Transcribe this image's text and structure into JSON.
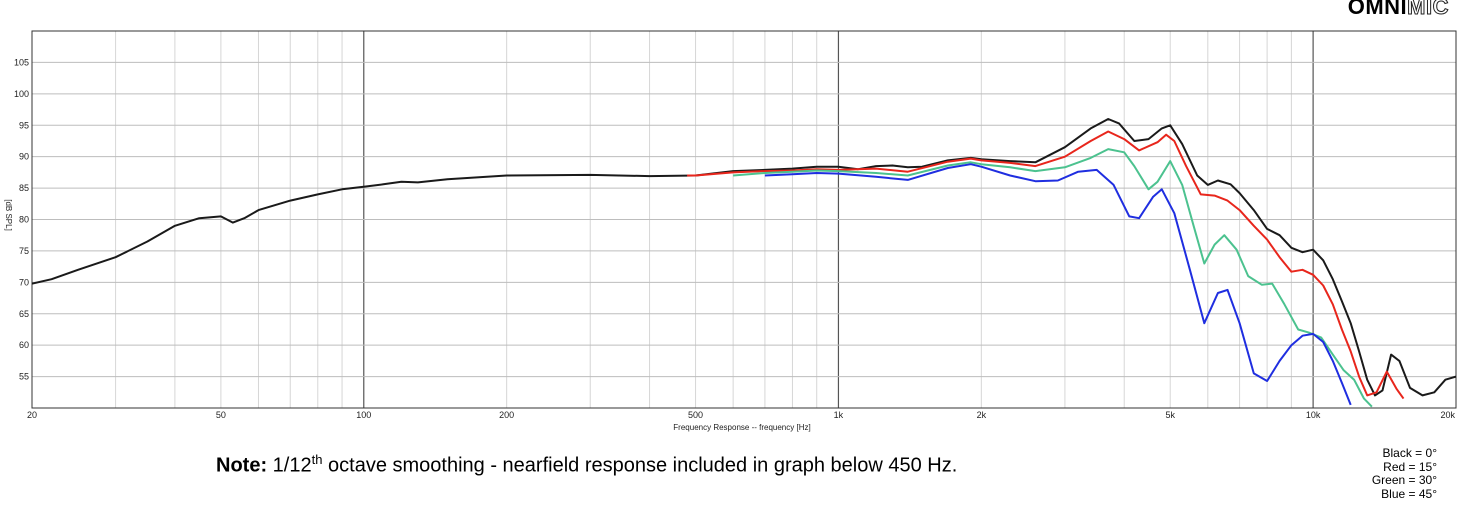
{
  "logo": {
    "part1": "OMNI",
    "part2": "MIC"
  },
  "note": {
    "label": "Note:",
    "pre": "1/12",
    "sup": "th",
    "post": " octave smoothing - nearfield response included in graph below 450 Hz."
  },
  "legend": [
    "Black = 0°",
    "Red = 15°",
    "Green = 30°",
    "Blue = 45°"
  ],
  "colors": {
    "black": "#1a1a1a",
    "red": "#e8261c",
    "green": "#4cc28f",
    "blue": "#1f2ee0"
  },
  "chart_data": {
    "type": "line",
    "xscale": "log",
    "xlim": [
      20,
      20000
    ],
    "ylim": [
      50,
      110
    ],
    "xlabel": "Frequency Response -- frequency [Hz]",
    "ylabel": "[dB SPL]",
    "xticks": [
      {
        "v": 20,
        "label": "20"
      },
      {
        "v": 50,
        "label": "50"
      },
      {
        "v": 100,
        "label": "100"
      },
      {
        "v": 200,
        "label": "200"
      },
      {
        "v": 500,
        "label": "500"
      },
      {
        "v": 1000,
        "label": "1k"
      },
      {
        "v": 2000,
        "label": "2k"
      },
      {
        "v": 5000,
        "label": "5k"
      },
      {
        "v": 10000,
        "label": "10k"
      },
      {
        "v": 20000,
        "label": "20k"
      }
    ],
    "yticks": [
      55,
      60,
      65,
      70,
      75,
      80,
      85,
      90,
      95,
      100,
      105
    ],
    "grid": true,
    "series": [
      {
        "name": "Black = 0°",
        "color": "#1a1a1a",
        "points": [
          [
            20,
            69.8
          ],
          [
            22,
            70.5
          ],
          [
            25,
            72
          ],
          [
            30,
            74
          ],
          [
            35,
            76.5
          ],
          [
            40,
            79
          ],
          [
            45,
            80.2
          ],
          [
            50,
            80.5
          ],
          [
            53,
            79.5
          ],
          [
            56,
            80.2
          ],
          [
            60,
            81.5
          ],
          [
            70,
            83
          ],
          [
            80,
            84
          ],
          [
            90,
            84.8
          ],
          [
            100,
            85.2
          ],
          [
            110,
            85.6
          ],
          [
            120,
            86
          ],
          [
            130,
            85.9
          ],
          [
            150,
            86.4
          ],
          [
            200,
            87
          ],
          [
            300,
            87.1
          ],
          [
            400,
            86.9
          ],
          [
            500,
            87
          ],
          [
            600,
            87.7
          ],
          [
            700,
            87.9
          ],
          [
            800,
            88.1
          ],
          [
            900,
            88.4
          ],
          [
            1000,
            88.4
          ],
          [
            1100,
            88.0
          ],
          [
            1200,
            88.5
          ],
          [
            1300,
            88.6
          ],
          [
            1400,
            88.3
          ],
          [
            1500,
            88.4
          ],
          [
            1700,
            89.4
          ],
          [
            1900,
            89.8
          ],
          [
            2000,
            89.6
          ],
          [
            2300,
            89.3
          ],
          [
            2600,
            89.1
          ],
          [
            3000,
            91.5
          ],
          [
            3400,
            94.5
          ],
          [
            3700,
            96
          ],
          [
            3900,
            95.3
          ],
          [
            4200,
            92.5
          ],
          [
            4500,
            92.8
          ],
          [
            4800,
            94.5
          ],
          [
            5000,
            95
          ],
          [
            5300,
            92
          ],
          [
            5700,
            87
          ],
          [
            6000,
            85.5
          ],
          [
            6300,
            86.2
          ],
          [
            6700,
            85.6
          ],
          [
            7000,
            84.2
          ],
          [
            7500,
            81.5
          ],
          [
            8000,
            78.5
          ],
          [
            8500,
            77.5
          ],
          [
            9000,
            75.5
          ],
          [
            9500,
            74.8
          ],
          [
            10000,
            75.2
          ],
          [
            10500,
            73.5
          ],
          [
            11000,
            70.5
          ],
          [
            11500,
            67
          ],
          [
            12000,
            63.5
          ],
          [
            12500,
            59
          ],
          [
            13000,
            54.5
          ],
          [
            13500,
            52
          ],
          [
            14000,
            52.8
          ],
          [
            14600,
            58.5
          ],
          [
            15200,
            57.5
          ],
          [
            16000,
            53.2
          ],
          [
            17000,
            52
          ],
          [
            18000,
            52.5
          ],
          [
            19000,
            54.5
          ],
          [
            20000,
            55
          ]
        ]
      },
      {
        "name": "Red = 15°",
        "color": "#e8261c",
        "points": [
          [
            480,
            87
          ],
          [
            500,
            87
          ],
          [
            600,
            87.5
          ],
          [
            700,
            87.7
          ],
          [
            800,
            87.8
          ],
          [
            900,
            88
          ],
          [
            1000,
            87.9
          ],
          [
            1200,
            88.1
          ],
          [
            1400,
            87.6
          ],
          [
            1700,
            89.2
          ],
          [
            1900,
            89.7
          ],
          [
            2000,
            89.4
          ],
          [
            2300,
            89
          ],
          [
            2600,
            88.5
          ],
          [
            3000,
            90
          ],
          [
            3400,
            92.5
          ],
          [
            3700,
            94
          ],
          [
            4000,
            92.8
          ],
          [
            4300,
            91
          ],
          [
            4700,
            92.3
          ],
          [
            4900,
            93.5
          ],
          [
            5100,
            92.5
          ],
          [
            5400,
            88.5
          ],
          [
            5800,
            84
          ],
          [
            6200,
            83.8
          ],
          [
            6600,
            83
          ],
          [
            7000,
            81.5
          ],
          [
            7500,
            79
          ],
          [
            8000,
            76.8
          ],
          [
            8500,
            74
          ],
          [
            9000,
            71.7
          ],
          [
            9500,
            72
          ],
          [
            10000,
            71.2
          ],
          [
            10500,
            69.5
          ],
          [
            11000,
            66.5
          ],
          [
            11500,
            62.5
          ],
          [
            12000,
            59
          ],
          [
            12500,
            55
          ],
          [
            13000,
            52
          ],
          [
            13600,
            52.5
          ],
          [
            14300,
            55.8
          ],
          [
            15000,
            53
          ],
          [
            15500,
            51.5
          ]
        ]
      },
      {
        "name": "Green = 30°",
        "color": "#4cc28f",
        "points": [
          [
            600,
            87
          ],
          [
            700,
            87.4
          ],
          [
            800,
            87.6
          ],
          [
            900,
            87.8
          ],
          [
            1000,
            87.7
          ],
          [
            1200,
            87.4
          ],
          [
            1400,
            87
          ],
          [
            1700,
            88.6
          ],
          [
            1900,
            89.1
          ],
          [
            2000,
            88.8
          ],
          [
            2300,
            88.3
          ],
          [
            2600,
            87.7
          ],
          [
            3000,
            88.3
          ],
          [
            3400,
            89.8
          ],
          [
            3700,
            91.2
          ],
          [
            4000,
            90.7
          ],
          [
            4200,
            88.5
          ],
          [
            4500,
            84.8
          ],
          [
            4700,
            86
          ],
          [
            5000,
            89.3
          ],
          [
            5300,
            85.5
          ],
          [
            5600,
            79
          ],
          [
            5900,
            73
          ],
          [
            6200,
            76
          ],
          [
            6500,
            77.5
          ],
          [
            6900,
            75.2
          ],
          [
            7300,
            71
          ],
          [
            7800,
            69.6
          ],
          [
            8200,
            69.8
          ],
          [
            8700,
            66.5
          ],
          [
            9300,
            62.5
          ],
          [
            9800,
            62
          ],
          [
            10400,
            61.2
          ],
          [
            11000,
            58.5
          ],
          [
            11600,
            56
          ],
          [
            12200,
            54.5
          ],
          [
            12800,
            51.5
          ],
          [
            13300,
            50.2
          ]
        ]
      },
      {
        "name": "Blue = 45°",
        "color": "#1f2ee0",
        "points": [
          [
            700,
            87
          ],
          [
            800,
            87.2
          ],
          [
            900,
            87.4
          ],
          [
            1000,
            87.3
          ],
          [
            1200,
            86.8
          ],
          [
            1400,
            86.3
          ],
          [
            1700,
            88.2
          ],
          [
            1900,
            88.8
          ],
          [
            2000,
            88.4
          ],
          [
            2300,
            87
          ],
          [
            2600,
            86.1
          ],
          [
            2900,
            86.2
          ],
          [
            3200,
            87.6
          ],
          [
            3500,
            87.9
          ],
          [
            3800,
            85.5
          ],
          [
            4100,
            80.5
          ],
          [
            4300,
            80.2
          ],
          [
            4600,
            83.6
          ],
          [
            4800,
            84.8
          ],
          [
            5100,
            81
          ],
          [
            5500,
            72
          ],
          [
            5900,
            63.5
          ],
          [
            6300,
            68.3
          ],
          [
            6600,
            68.8
          ],
          [
            7000,
            63.5
          ],
          [
            7500,
            55.5
          ],
          [
            8000,
            54.3
          ],
          [
            8500,
            57.5
          ],
          [
            9000,
            60
          ],
          [
            9500,
            61.5
          ],
          [
            10000,
            61.8
          ],
          [
            10500,
            60.5
          ],
          [
            11000,
            57.5
          ],
          [
            11500,
            54
          ],
          [
            12000,
            50.5
          ]
        ]
      }
    ]
  }
}
